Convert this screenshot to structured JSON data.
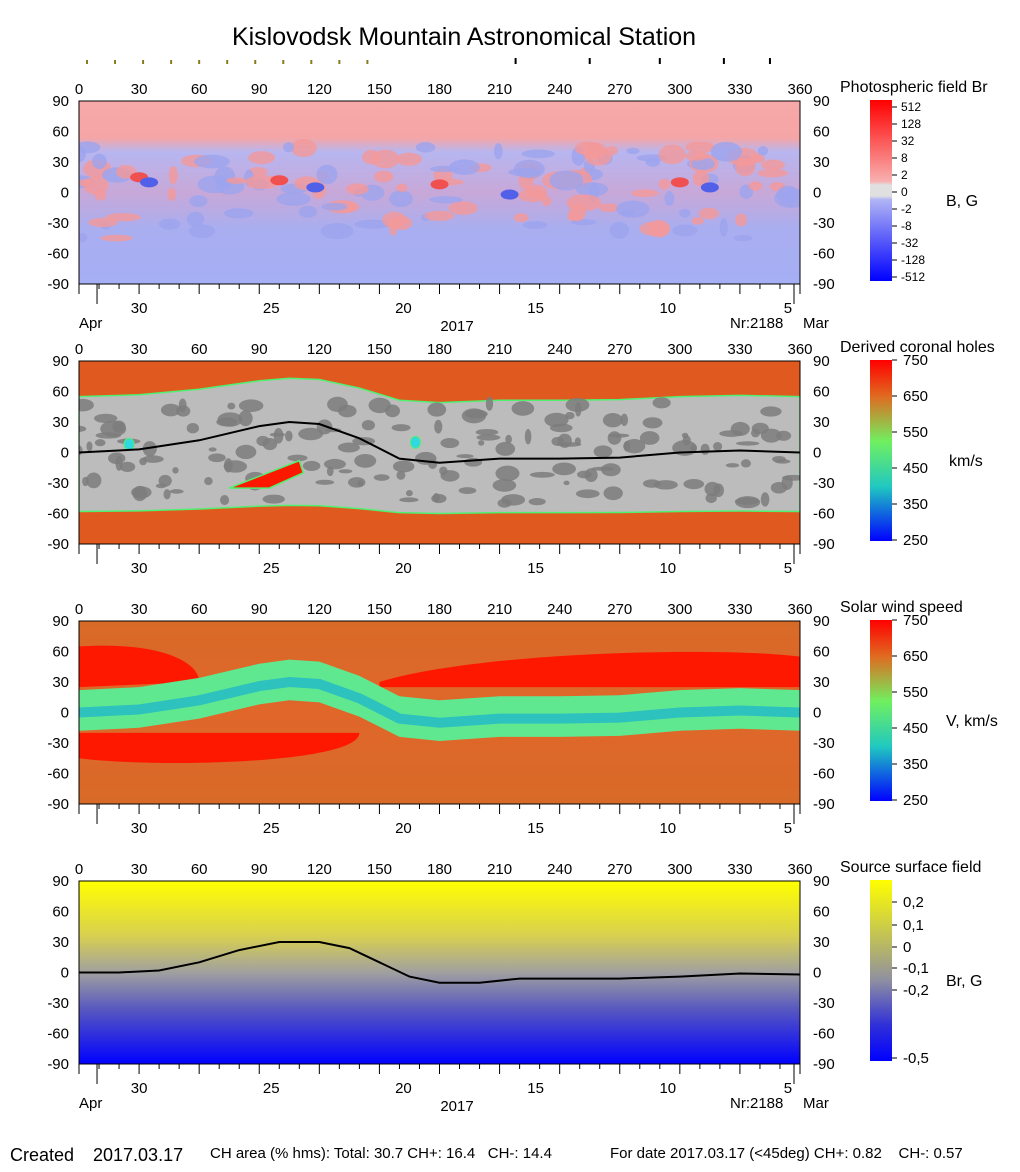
{
  "title": "Kislovodsk Mountain Astronomical Station",
  "footer": {
    "created_label": "Created",
    "created_date": "2017.03.17",
    "ch_area": "CH area (% hms): Total: 30.7 CH+: 16.4   CH-: 14.4",
    "for_date": "For date 2017.03.17 (<45deg) CH+: 0.82    CH-: 0.57"
  },
  "longitude_ticks": [
    "0",
    "30",
    "60",
    "90",
    "120",
    "150",
    "180",
    "210",
    "240",
    "270",
    "300",
    "330",
    "360"
  ],
  "latitude_ticks": [
    "90",
    "60",
    "30",
    "0",
    "-30",
    "-60",
    "-90"
  ],
  "day_ticks": [
    {
      "label": "30",
      "lon": 30
    },
    {
      "label": "25",
      "lon": 96
    },
    {
      "label": "20",
      "lon": 162
    },
    {
      "label": "15",
      "lon": 228
    },
    {
      "label": "10",
      "lon": 294
    },
    {
      "label": "5",
      "lon": 354
    }
  ],
  "month_left": "Apr",
  "month_right": "Mar",
  "year": "2017",
  "rotation": "Nr:2188",
  "colors": {
    "positive_field": "#f8a0a0",
    "negative_field": "#a8b0f0",
    "slow_wind": "#e05a20",
    "fast_wind": "#ff1800",
    "boundary": "#50f070",
    "coronal_gray_light": "#bcbcbc",
    "coronal_gray_dark": "#7c7c7c",
    "source_positive": "#ffff00",
    "source_negative": "#0000ff"
  },
  "chart_data": [
    {
      "type": "heatmap",
      "title": "Photospheric field Br",
      "colorbar_label": "B, G",
      "colorbar_ticks": [
        "512",
        "128",
        "32",
        "8",
        "2",
        "0",
        "-2",
        "-8",
        "-32",
        "-128",
        "-512"
      ],
      "x_range": [
        0,
        360
      ],
      "y_range": [
        -90,
        90
      ],
      "dominant_sign": {
        "north_of_45": "positive",
        "south_of_minus_45": "negative"
      }
    },
    {
      "type": "heatmap",
      "title": "Derived coronal holes",
      "colorbar_label": "km/s",
      "colorbar_ticks": [
        "750",
        "650",
        "550",
        "450",
        "350",
        "250"
      ],
      "x_range": [
        0,
        360
      ],
      "y_range": [
        -90,
        90
      ],
      "neutral_line": {
        "lon": [
          0,
          30,
          60,
          90,
          105,
          120,
          140,
          160,
          180,
          210,
          240,
          270,
          300,
          330,
          360
        ],
        "lat": [
          0,
          3,
          12,
          26,
          30,
          28,
          14,
          -6,
          -10,
          -6,
          -6,
          -5,
          0,
          2,
          0
        ]
      }
    },
    {
      "type": "heatmap",
      "title": "Solar wind speed",
      "colorbar_label": "V, km/s",
      "colorbar_ticks": [
        "750",
        "650",
        "550",
        "450",
        "350",
        "250"
      ],
      "x_range": [
        0,
        360
      ],
      "y_range": [
        -90,
        90
      ]
    },
    {
      "type": "heatmap",
      "title": "Source surface field",
      "colorbar_label": "Br, G",
      "colorbar_ticks": [
        "0,2",
        "0,1",
        "0",
        "-0,1",
        "-0,2",
        "-0,5"
      ],
      "x_range": [
        0,
        360
      ],
      "y_range": [
        -90,
        90
      ],
      "neutral_line": {
        "lon": [
          0,
          20,
          40,
          60,
          80,
          100,
          120,
          135,
          150,
          165,
          180,
          200,
          220,
          240,
          270,
          300,
          330,
          360
        ],
        "lat": [
          0,
          0,
          2,
          10,
          22,
          30,
          30,
          24,
          10,
          -4,
          -10,
          -10,
          -6,
          -6,
          -6,
          -4,
          -1,
          -2
        ]
      }
    }
  ]
}
